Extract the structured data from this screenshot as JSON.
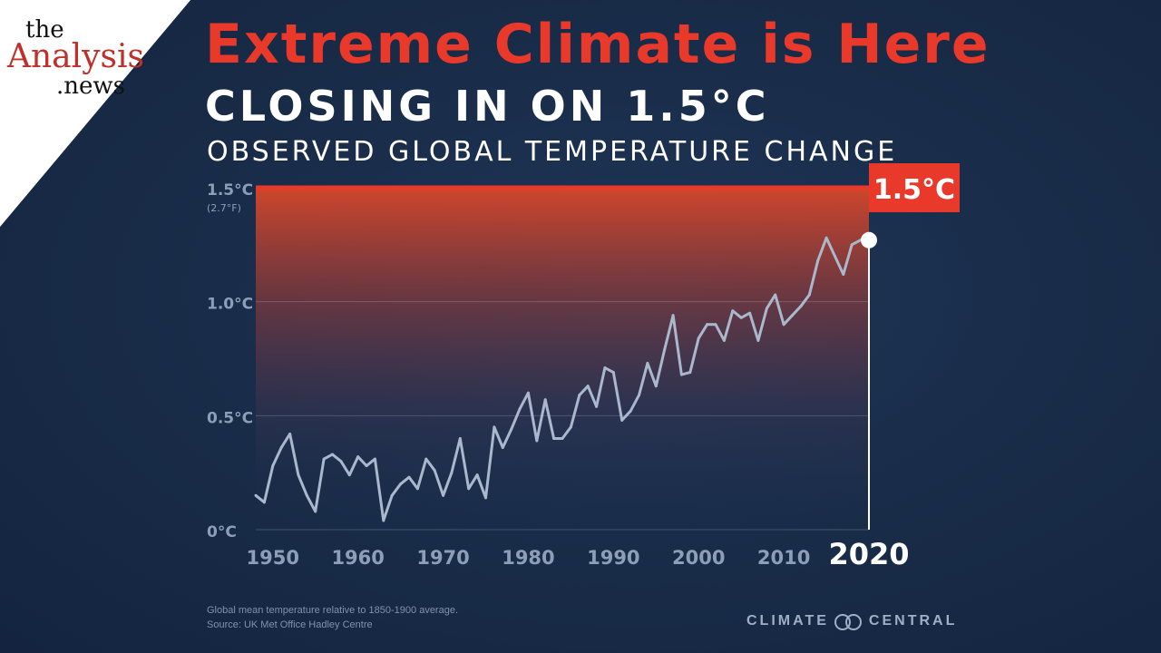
{
  "logo": {
    "line1": "the",
    "line2": "Analysis",
    "line3": ".news"
  },
  "header": {
    "title": "Extreme Climate is Here",
    "subtitle": "CLOSING IN ON 1.5°C",
    "caption": "OBSERVED GLOBAL TEMPERATURE CHANGE"
  },
  "footer": {
    "note": "Global mean temperature relative to 1850-1900 average.",
    "source": "Source: UK Met Office Hadley Centre",
    "brand_left": "CLIMATE",
    "brand_right": "CENTRAL"
  },
  "colors": {
    "line": "#a9b8cc",
    "threshold": "#e8392a",
    "label_bg": "#e8392a",
    "axis_text": "#8d9fb8"
  },
  "chart_data": {
    "type": "line",
    "title": "OBSERVED GLOBAL TEMPERATURE CHANGE",
    "ylabel": "",
    "xlabel": "",
    "xlim": [
      1948,
      2020
    ],
    "ylim": [
      0,
      1.5
    ],
    "yticks": [
      {
        "value": 0,
        "label": "0°C"
      },
      {
        "value": 0.5,
        "label": "0.5°C"
      },
      {
        "value": 1.0,
        "label": "1.0°C"
      },
      {
        "value": 1.5,
        "label": "1.5°C",
        "sublabel": "(2.7°F)"
      }
    ],
    "xticks": [
      1950,
      1960,
      1970,
      1980,
      1990,
      2000,
      2010
    ],
    "highlight_year": {
      "value": 2020,
      "label": "2020"
    },
    "threshold": {
      "value": 1.5,
      "label": "1.5°C"
    },
    "grid": true,
    "series": [
      {
        "x": [
          1948,
          1949,
          1950,
          1951,
          1952,
          1953,
          1954,
          1955,
          1956,
          1957,
          1958,
          1959,
          1960,
          1961,
          1962,
          1963,
          1964,
          1965,
          1966,
          1967,
          1968,
          1969,
          1970,
          1971,
          1972,
          1973,
          1974,
          1975,
          1976,
          1977,
          1978,
          1979,
          1980,
          1981,
          1982,
          1983,
          1984,
          1985,
          1986,
          1987,
          1988,
          1989,
          1990,
          1991,
          1992,
          1993,
          1994,
          1995,
          1996,
          1997,
          1998,
          1999,
          2000,
          2001,
          2002,
          2003,
          2004,
          2005,
          2006,
          2007,
          2008,
          2009,
          2010,
          2011,
          2012,
          2013,
          2014,
          2015,
          2016,
          2017,
          2018,
          2019,
          2020
        ],
        "values": [
          0.15,
          0.12,
          0.28,
          0.36,
          0.42,
          0.24,
          0.15,
          0.08,
          0.31,
          0.33,
          0.3,
          0.24,
          0.32,
          0.28,
          0.31,
          0.04,
          0.15,
          0.2,
          0.23,
          0.18,
          0.31,
          0.26,
          0.15,
          0.25,
          0.4,
          0.18,
          0.24,
          0.14,
          0.45,
          0.36,
          0.44,
          0.53,
          0.6,
          0.39,
          0.57,
          0.4,
          0.4,
          0.45,
          0.59,
          0.63,
          0.54,
          0.71,
          0.69,
          0.48,
          0.52,
          0.59,
          0.73,
          0.63,
          0.79,
          0.94,
          0.68,
          0.69,
          0.84,
          0.9,
          0.9,
          0.83,
          0.96,
          0.93,
          0.95,
          0.83,
          0.97,
          1.03,
          0.9,
          0.94,
          0.98,
          1.03,
          1.18,
          1.28,
          1.2,
          1.12,
          1.25,
          1.27,
          1.27
        ]
      }
    ]
  }
}
